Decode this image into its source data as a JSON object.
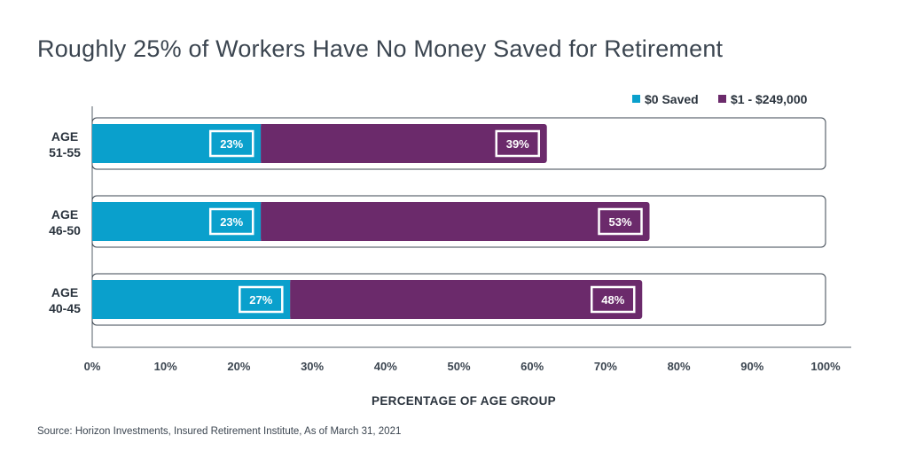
{
  "title": "Roughly 25% of Workers Have No Money Saved for Retirement",
  "source": "Source: Horizon Investments, Insured Retirement Institute, As of March 31, 2021",
  "colors": {
    "saved_zero": "#0aa0cc",
    "saved_some": "#6b2a6b",
    "text": "#2a333d"
  },
  "chart_data": {
    "type": "bar",
    "orientation": "horizontal",
    "stacked": true,
    "categories": [
      [
        "AGE",
        "51-55"
      ],
      [
        "AGE",
        "46-50"
      ],
      [
        "AGE",
        "40-45"
      ]
    ],
    "series": [
      {
        "name": "$0 Saved",
        "values": [
          23,
          23,
          27
        ],
        "labels": [
          "23%",
          "23%",
          "27%"
        ]
      },
      {
        "name": "$1 - $249,000",
        "values": [
          39,
          53,
          48
        ],
        "labels": [
          "39%",
          "53%",
          "48%"
        ]
      }
    ],
    "xlabel": "PERCENTAGE OF AGE GROUP",
    "ylabel": "",
    "xlim": [
      0,
      100
    ],
    "xticks": [
      "0%",
      "10%",
      "20%",
      "30%",
      "40%",
      "50%",
      "60%",
      "70%",
      "80%",
      "90%",
      "100%"
    ],
    "grid": false,
    "legend_position": "top-right"
  }
}
